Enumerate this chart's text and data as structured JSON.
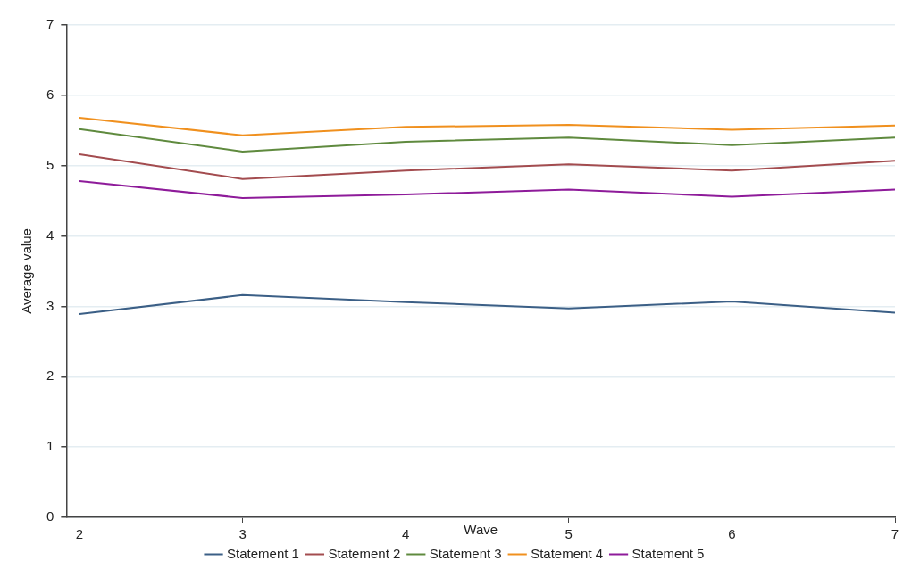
{
  "chart_data": {
    "type": "line",
    "xlabel": "Wave",
    "ylabel": "Average value",
    "x": [
      2,
      3,
      4,
      5,
      6,
      7
    ],
    "xlim": [
      1.92,
      7
    ],
    "xticks": [
      2,
      3,
      4,
      5,
      6,
      7
    ],
    "ylim": [
      0,
      7
    ],
    "yticks": [
      0,
      1,
      2,
      3,
      4,
      5,
      6,
      7
    ],
    "grid": "y",
    "legend": "bottom",
    "marker": "none",
    "line_style": "solid",
    "series": [
      {
        "name": "Statement 1",
        "color": "#3b5f86",
        "values": [
          2.89,
          3.16,
          3.06,
          2.97,
          3.07,
          2.91
        ]
      },
      {
        "name": "Statement 2",
        "color": "#a34c4f",
        "values": [
          5.16,
          4.81,
          4.93,
          5.02,
          4.93,
          5.07
        ]
      },
      {
        "name": "Statement 3",
        "color": "#5f8a3e",
        "values": [
          5.52,
          5.2,
          5.34,
          5.4,
          5.29,
          5.4
        ]
      },
      {
        "name": "Statement 4",
        "color": "#f0901e",
        "values": [
          5.68,
          5.43,
          5.55,
          5.58,
          5.51,
          5.57
        ]
      },
      {
        "name": "Statement 5",
        "color": "#8e1b9a",
        "values": [
          4.78,
          4.54,
          4.59,
          4.66,
          4.56,
          4.66
        ]
      }
    ]
  }
}
